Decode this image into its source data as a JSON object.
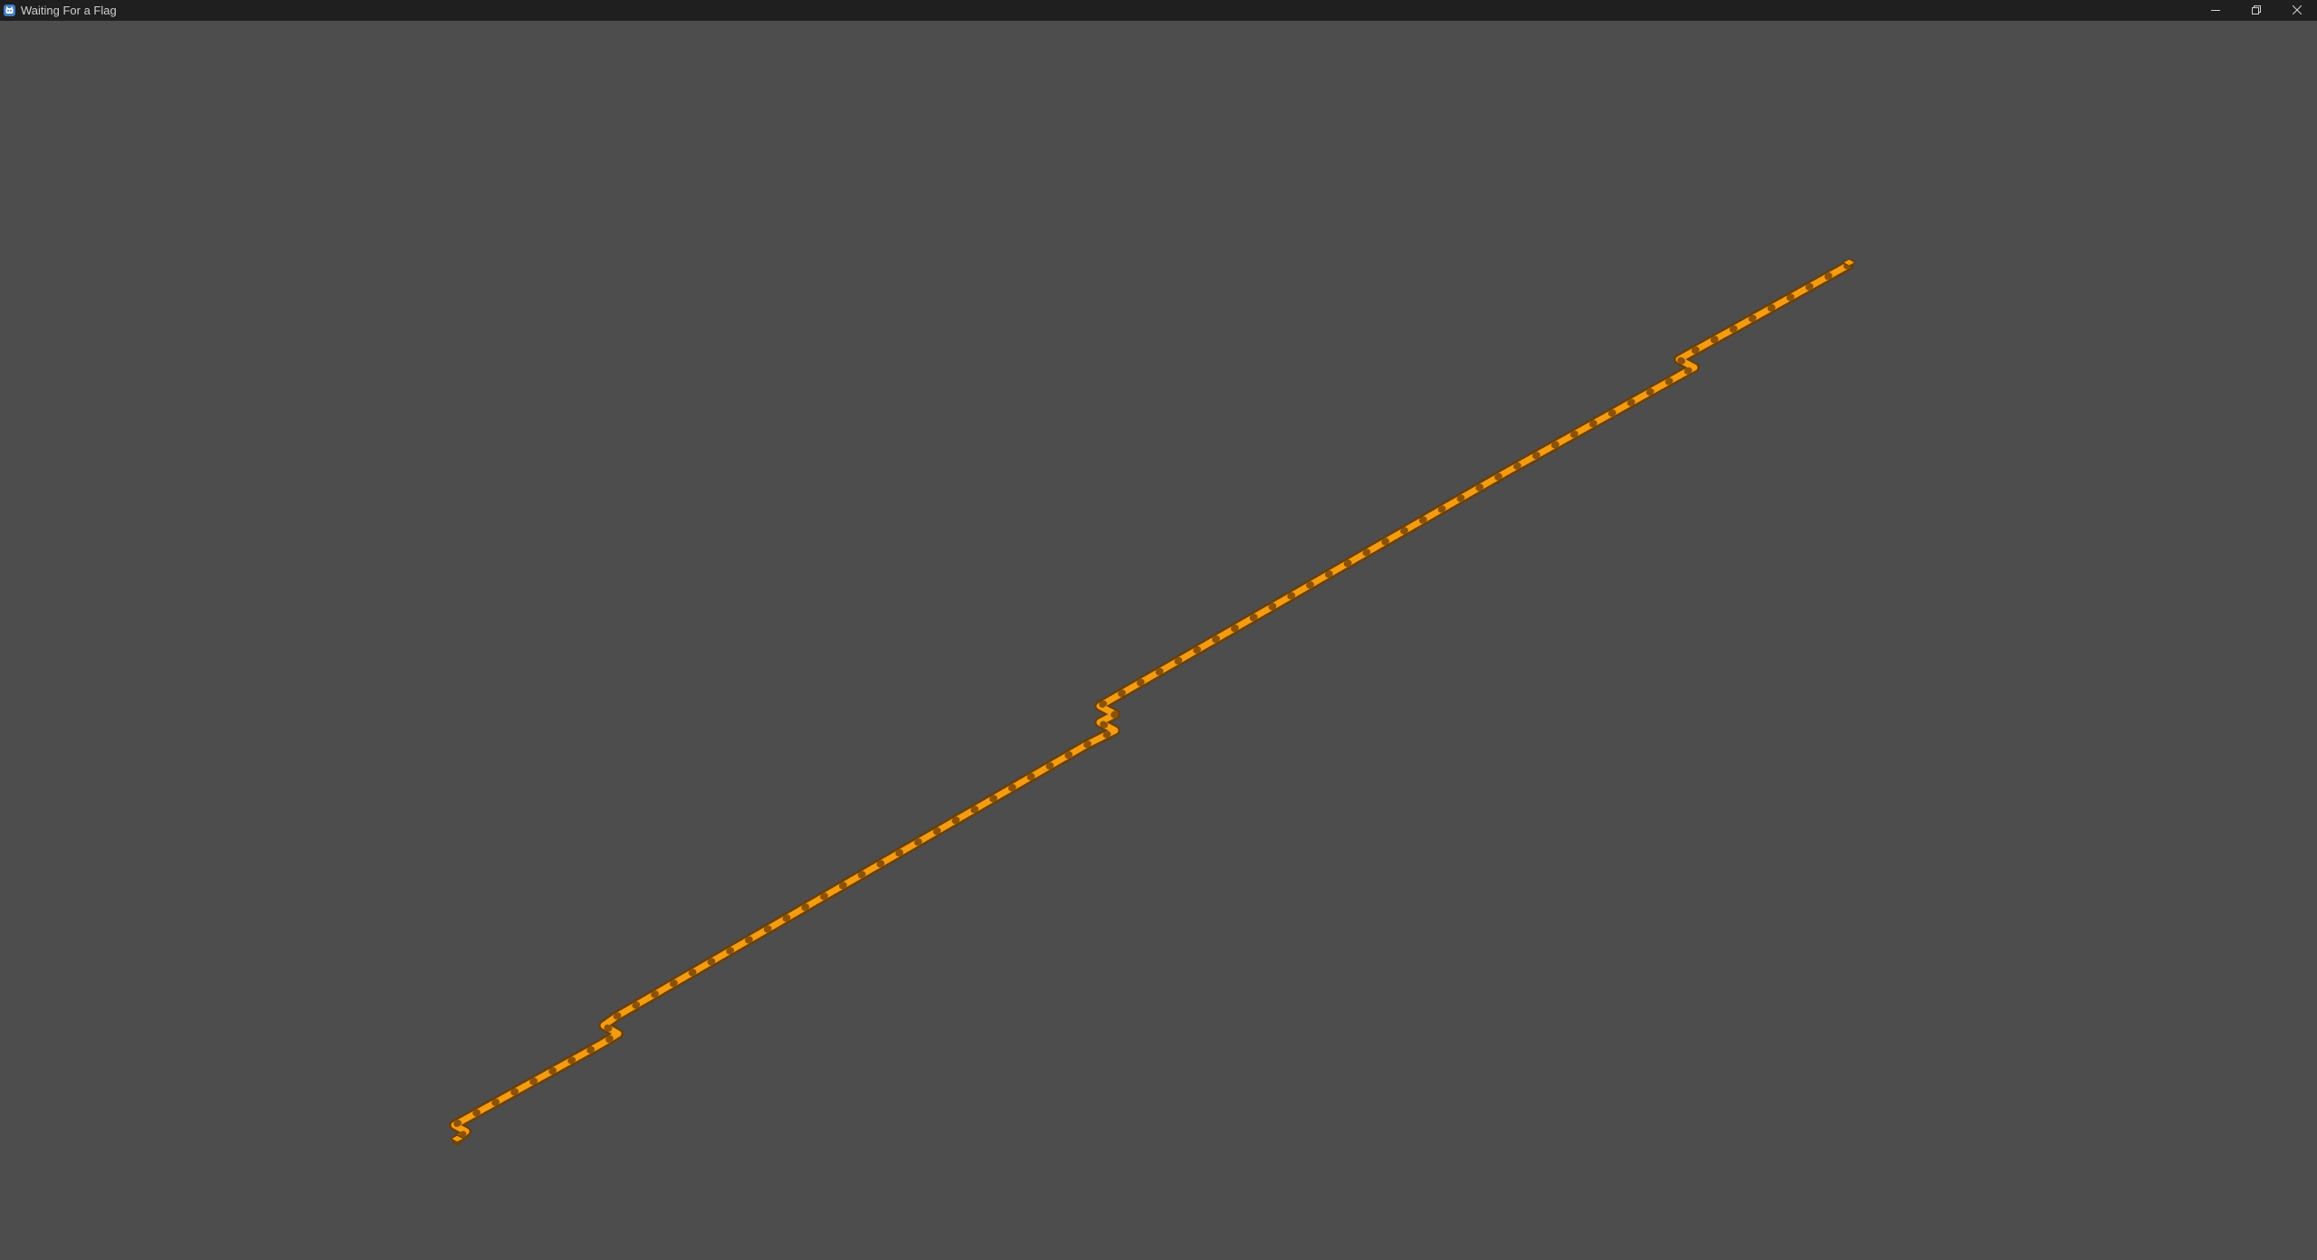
{
  "window": {
    "title": "Waiting For a Flag",
    "icon": "godot-engine-icon"
  },
  "controls": {
    "minimize": "minimize-icon",
    "restore": "restore-icon",
    "close": "close-icon"
  },
  "scene": {
    "background_color": "#4d4d4d",
    "path_color": "#f39c12",
    "path_edge_color": "#6b3f08",
    "titlebar_color": "#1f1f1f"
  }
}
